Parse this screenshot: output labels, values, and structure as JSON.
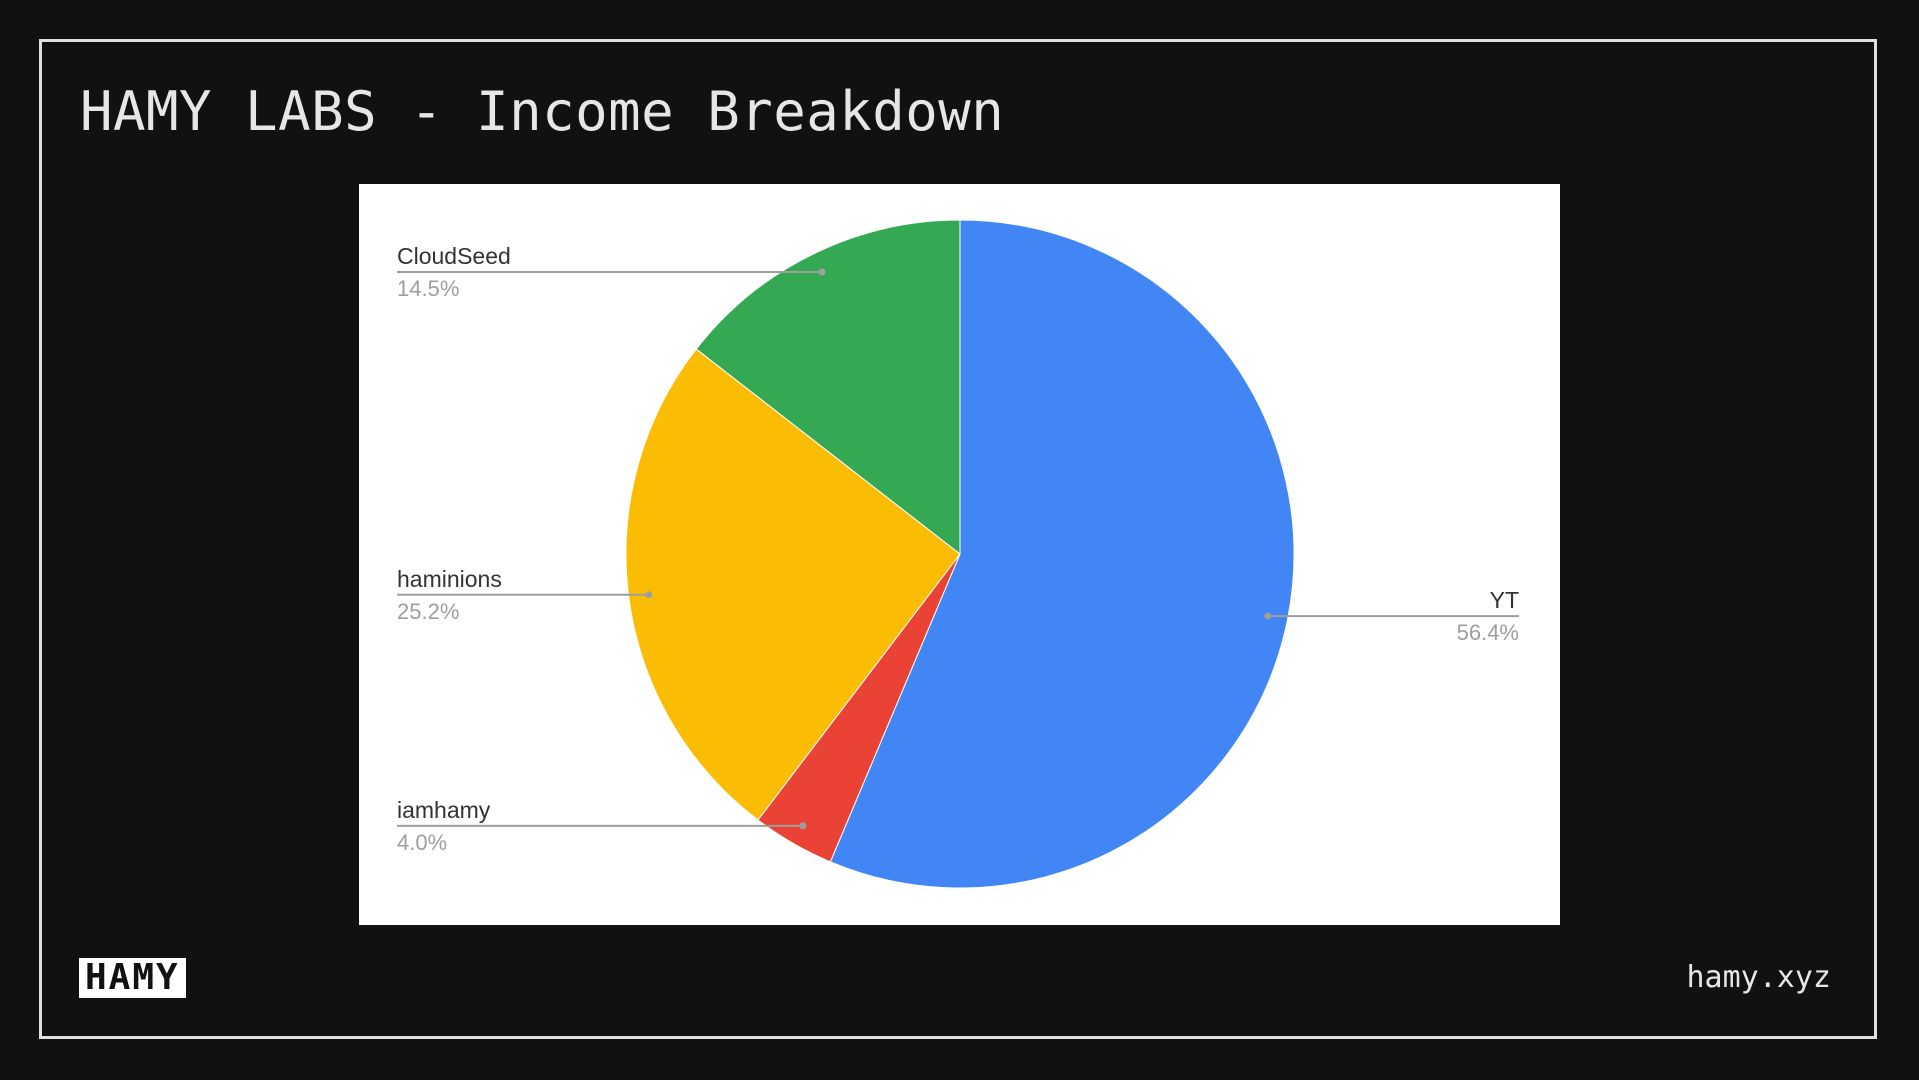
{
  "slide": {
    "title": "HAMY LABS - Income Breakdown",
    "logo_text": "HAMY",
    "url": "hamy.xyz"
  },
  "chart_data": {
    "type": "pie",
    "title": "",
    "slices": [
      {
        "label": "YT",
        "value": 56.4,
        "display": "56.4%",
        "color": "#4285f4"
      },
      {
        "label": "iamhamy",
        "value": 4.0,
        "display": "4.0%",
        "color": "#ea4335"
      },
      {
        "label": "haminions",
        "value": 25.2,
        "display": "25.2%",
        "color": "#fbbc04"
      },
      {
        "label": "CloudSeed",
        "value": 14.5,
        "display": "14.5%",
        "color": "#34a853"
      }
    ],
    "start_angle": "12 o'clock",
    "direction": "clockwise",
    "legend": "none"
  }
}
